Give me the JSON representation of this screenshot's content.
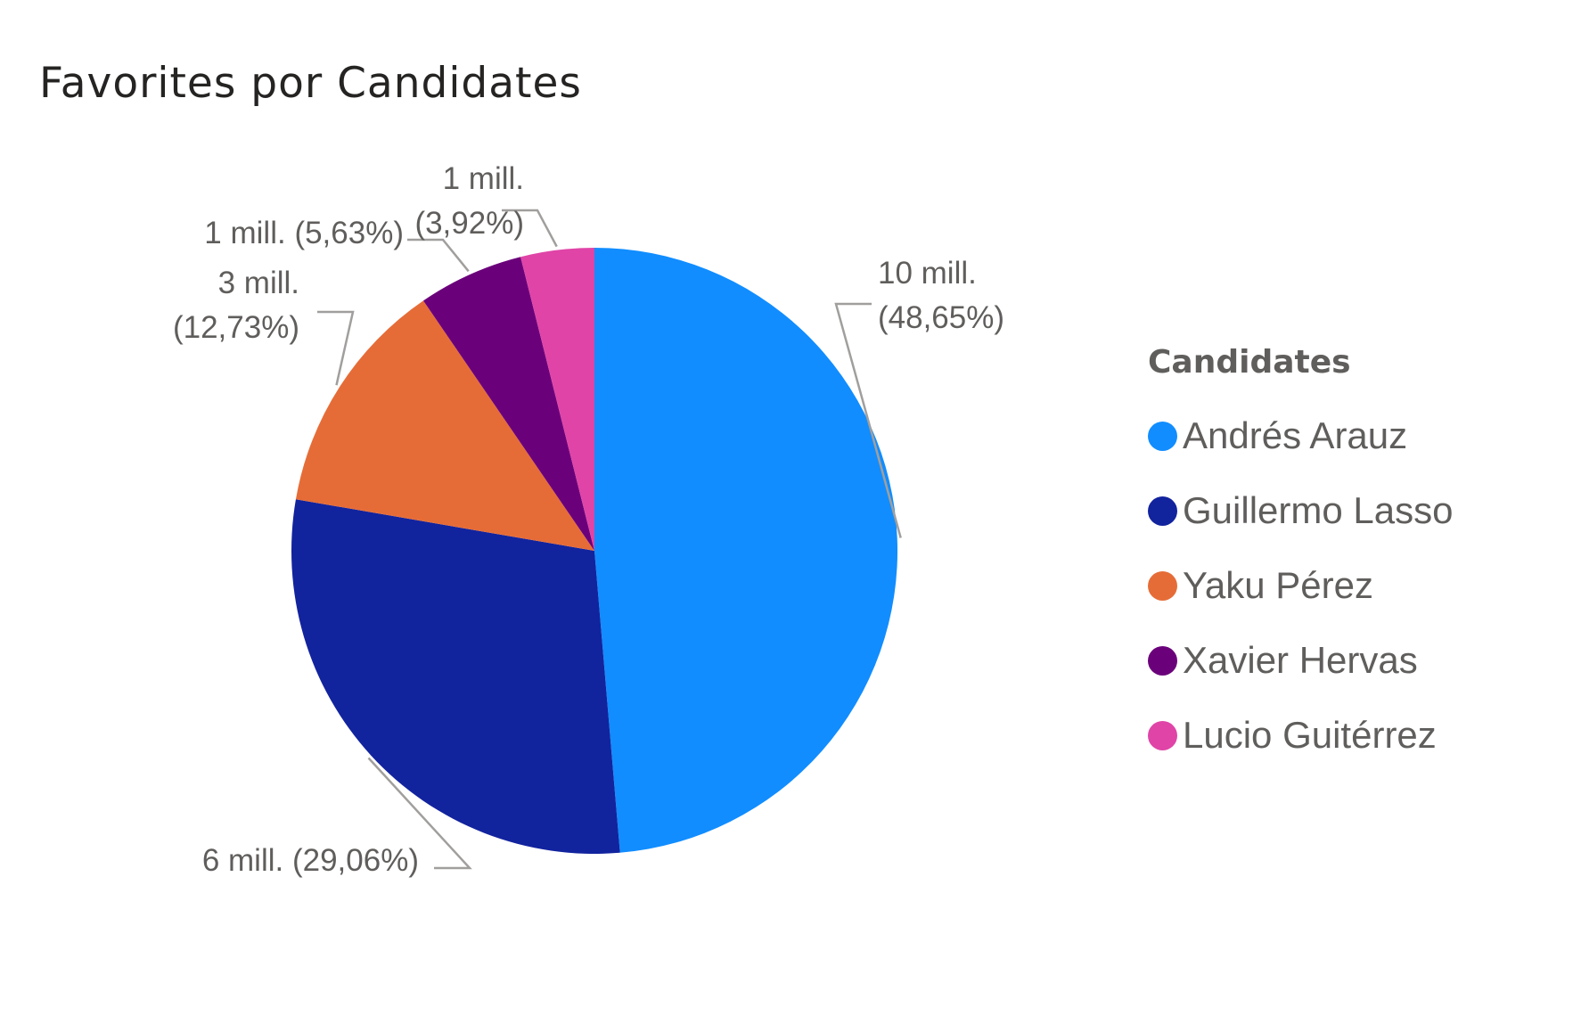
{
  "chart_data": {
    "type": "pie",
    "title": "Favorites por Candidates",
    "legend_title": "Candidates",
    "legend_position": "right",
    "categories": [
      "Andrés Arauz",
      "Guillermo Lasso",
      "Yaku Pérez",
      "Xavier Hervas",
      "Lucio Guitérrez"
    ],
    "percentages": [
      48.65,
      29.06,
      12.73,
      5.63,
      3.92
    ],
    "value_labels": [
      "10 mill.",
      "6 mill.",
      "3 mill.",
      "1 mill.",
      "1 mill."
    ],
    "percent_labels": [
      "(48,65%)",
      "(29,06%)",
      "(12,73%)",
      "(5,63%)",
      "(3,92%)"
    ],
    "colors": [
      "#118dff",
      "#12239e",
      "#e66c37",
      "#6b007b",
      "#e044a7"
    ]
  }
}
